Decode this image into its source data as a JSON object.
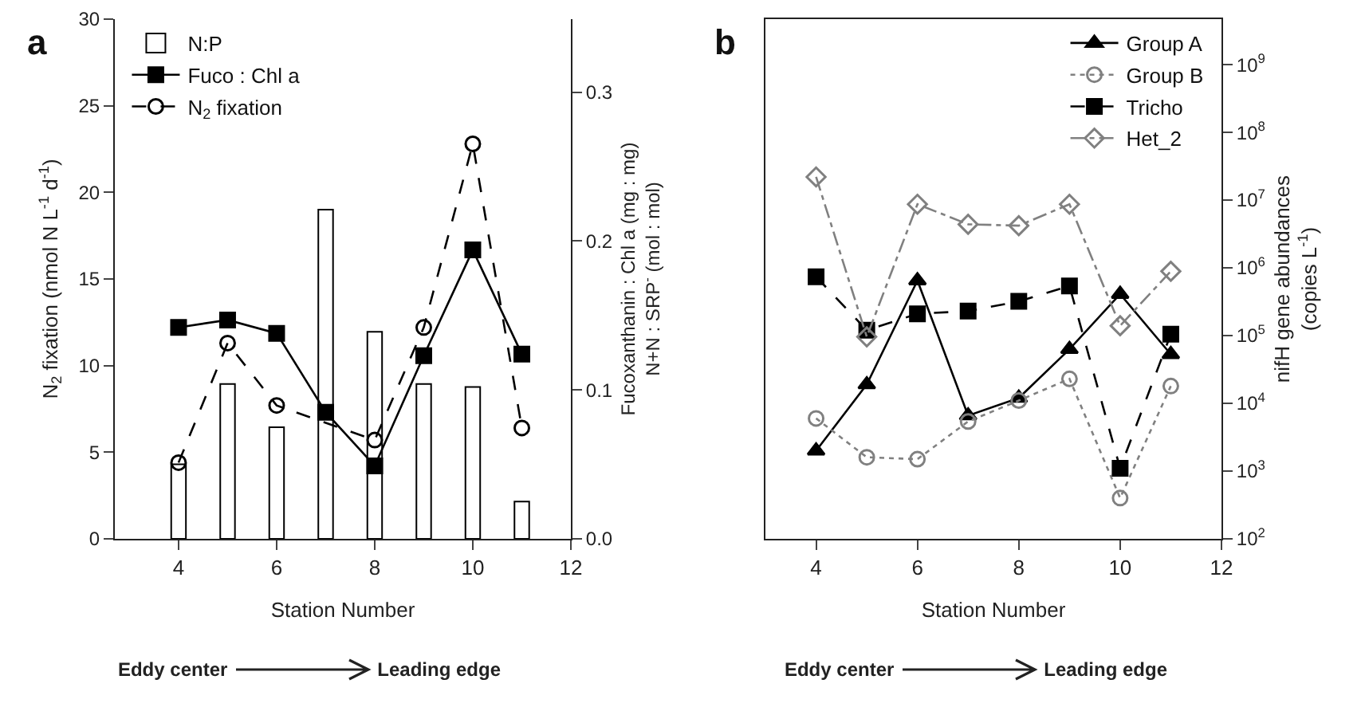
{
  "chart_data": [
    {
      "type": "line",
      "title": "a",
      "xlabel": "Station Number",
      "ylabel": "N$_{2}$ fixation (nmol N L$^{-1}$ d$^{-1}$)",
      "y2label": "Fucoxanthanin : Chl a (mg : mg)\nN+N : SRP$^{-}$ (mol : mol)",
      "x": [
        4,
        5,
        6,
        7,
        8,
        9,
        10,
        11
      ],
      "xlim": [
        2.7,
        12
      ],
      "xticks": [
        4,
        6,
        8,
        10,
        12
      ],
      "ylim": [
        0,
        30
      ],
      "yticks": [
        0,
        5,
        10,
        15,
        20,
        25,
        30
      ],
      "y2lim": [
        0,
        0.349
      ],
      "y2ticks": [
        {
          "value": 0,
          "label": "0.0"
        },
        0.1,
        0.2,
        0.3
      ],
      "grid": false,
      "legend": "top left",
      "series": [
        {
          "name": "N:P",
          "type": "bar",
          "axis": "y2",
          "color": "#ffffff",
          "values": [
            0.05,
            0.104,
            0.075,
            0.221,
            0.139,
            0.104,
            0.102,
            0.025
          ]
        },
        {
          "name": "Fuco : Chl a",
          "axis": "y2",
          "color": "#000000",
          "marker": "square",
          "line_style": "solid",
          "values": [
            0.142,
            0.147,
            0.138,
            0.085,
            0.049,
            0.123,
            0.194,
            0.124
          ]
        },
        {
          "name": "N$_{2}$ fixation",
          "color": "#000000",
          "marker": "circle",
          "line_style": "dashed",
          "values": [
            4.4,
            11.3,
            7.7,
            null,
            5.7,
            12.2,
            22.8,
            6.4
          ]
        }
      ],
      "annotations": [
        "Eddy center",
        "Leading edge"
      ]
    },
    {
      "type": "line",
      "title": "b",
      "xlabel": "Station Number",
      "ylabel": "nifH gene abundances\n(copies L$^{-1}$)",
      "x": [
        4,
        5,
        6,
        7,
        8,
        9,
        10,
        11
      ],
      "xlim": [
        3,
        12
      ],
      "xticks": [
        4,
        6,
        8,
        10,
        12
      ],
      "log": "y",
      "ylim": [
        100,
        4700000000
      ],
      "yticks": [
        {
          "value": 100,
          "label": "10$^{2}$"
        },
        {
          "value": 1000,
          "label": "10$^{3}$"
        },
        {
          "value": 10000,
          "label": "10$^{4}$"
        },
        {
          "value": 100000,
          "label": "10$^{5}$"
        },
        {
          "value": 1000000,
          "label": "10$^{6}$"
        },
        {
          "value": 10000000,
          "label": "10$^{7}$"
        },
        {
          "value": 100000000,
          "label": "10$^{8}$"
        },
        {
          "value": 1000000000,
          "label": "10$^{9}$"
        }
      ],
      "grid": false,
      "legend": "top right",
      "series": [
        {
          "name": "Group A",
          "color": "#000000",
          "marker": "triangle",
          "line_style": "solid",
          "values": [
            2000,
            19000,
            650000,
            6600,
            12000,
            63000,
            410000,
            53000
          ]
        },
        {
          "name": "Group B",
          "color": "#808080",
          "marker": "circle",
          "line_style": "dotted",
          "values": [
            6000,
            1600,
            1500,
            5400,
            11000,
            23000,
            400,
            18000
          ]
        },
        {
          "name": "Tricho",
          "color": "#000000",
          "marker": "square",
          "line_style": "dashed",
          "values": [
            740000,
            120000,
            210000,
            230000,
            320000,
            540000,
            1100,
            105000
          ]
        },
        {
          "name": "Het_2",
          "color": "#808080",
          "marker": "diamond",
          "line_style": "dashdot",
          "values": [
            22000000,
            96000,
            8700000,
            4400000,
            4200000,
            8700000,
            140000,
            890000
          ]
        }
      ],
      "annotations": [
        "Eddy center",
        "Leading edge"
      ]
    }
  ]
}
